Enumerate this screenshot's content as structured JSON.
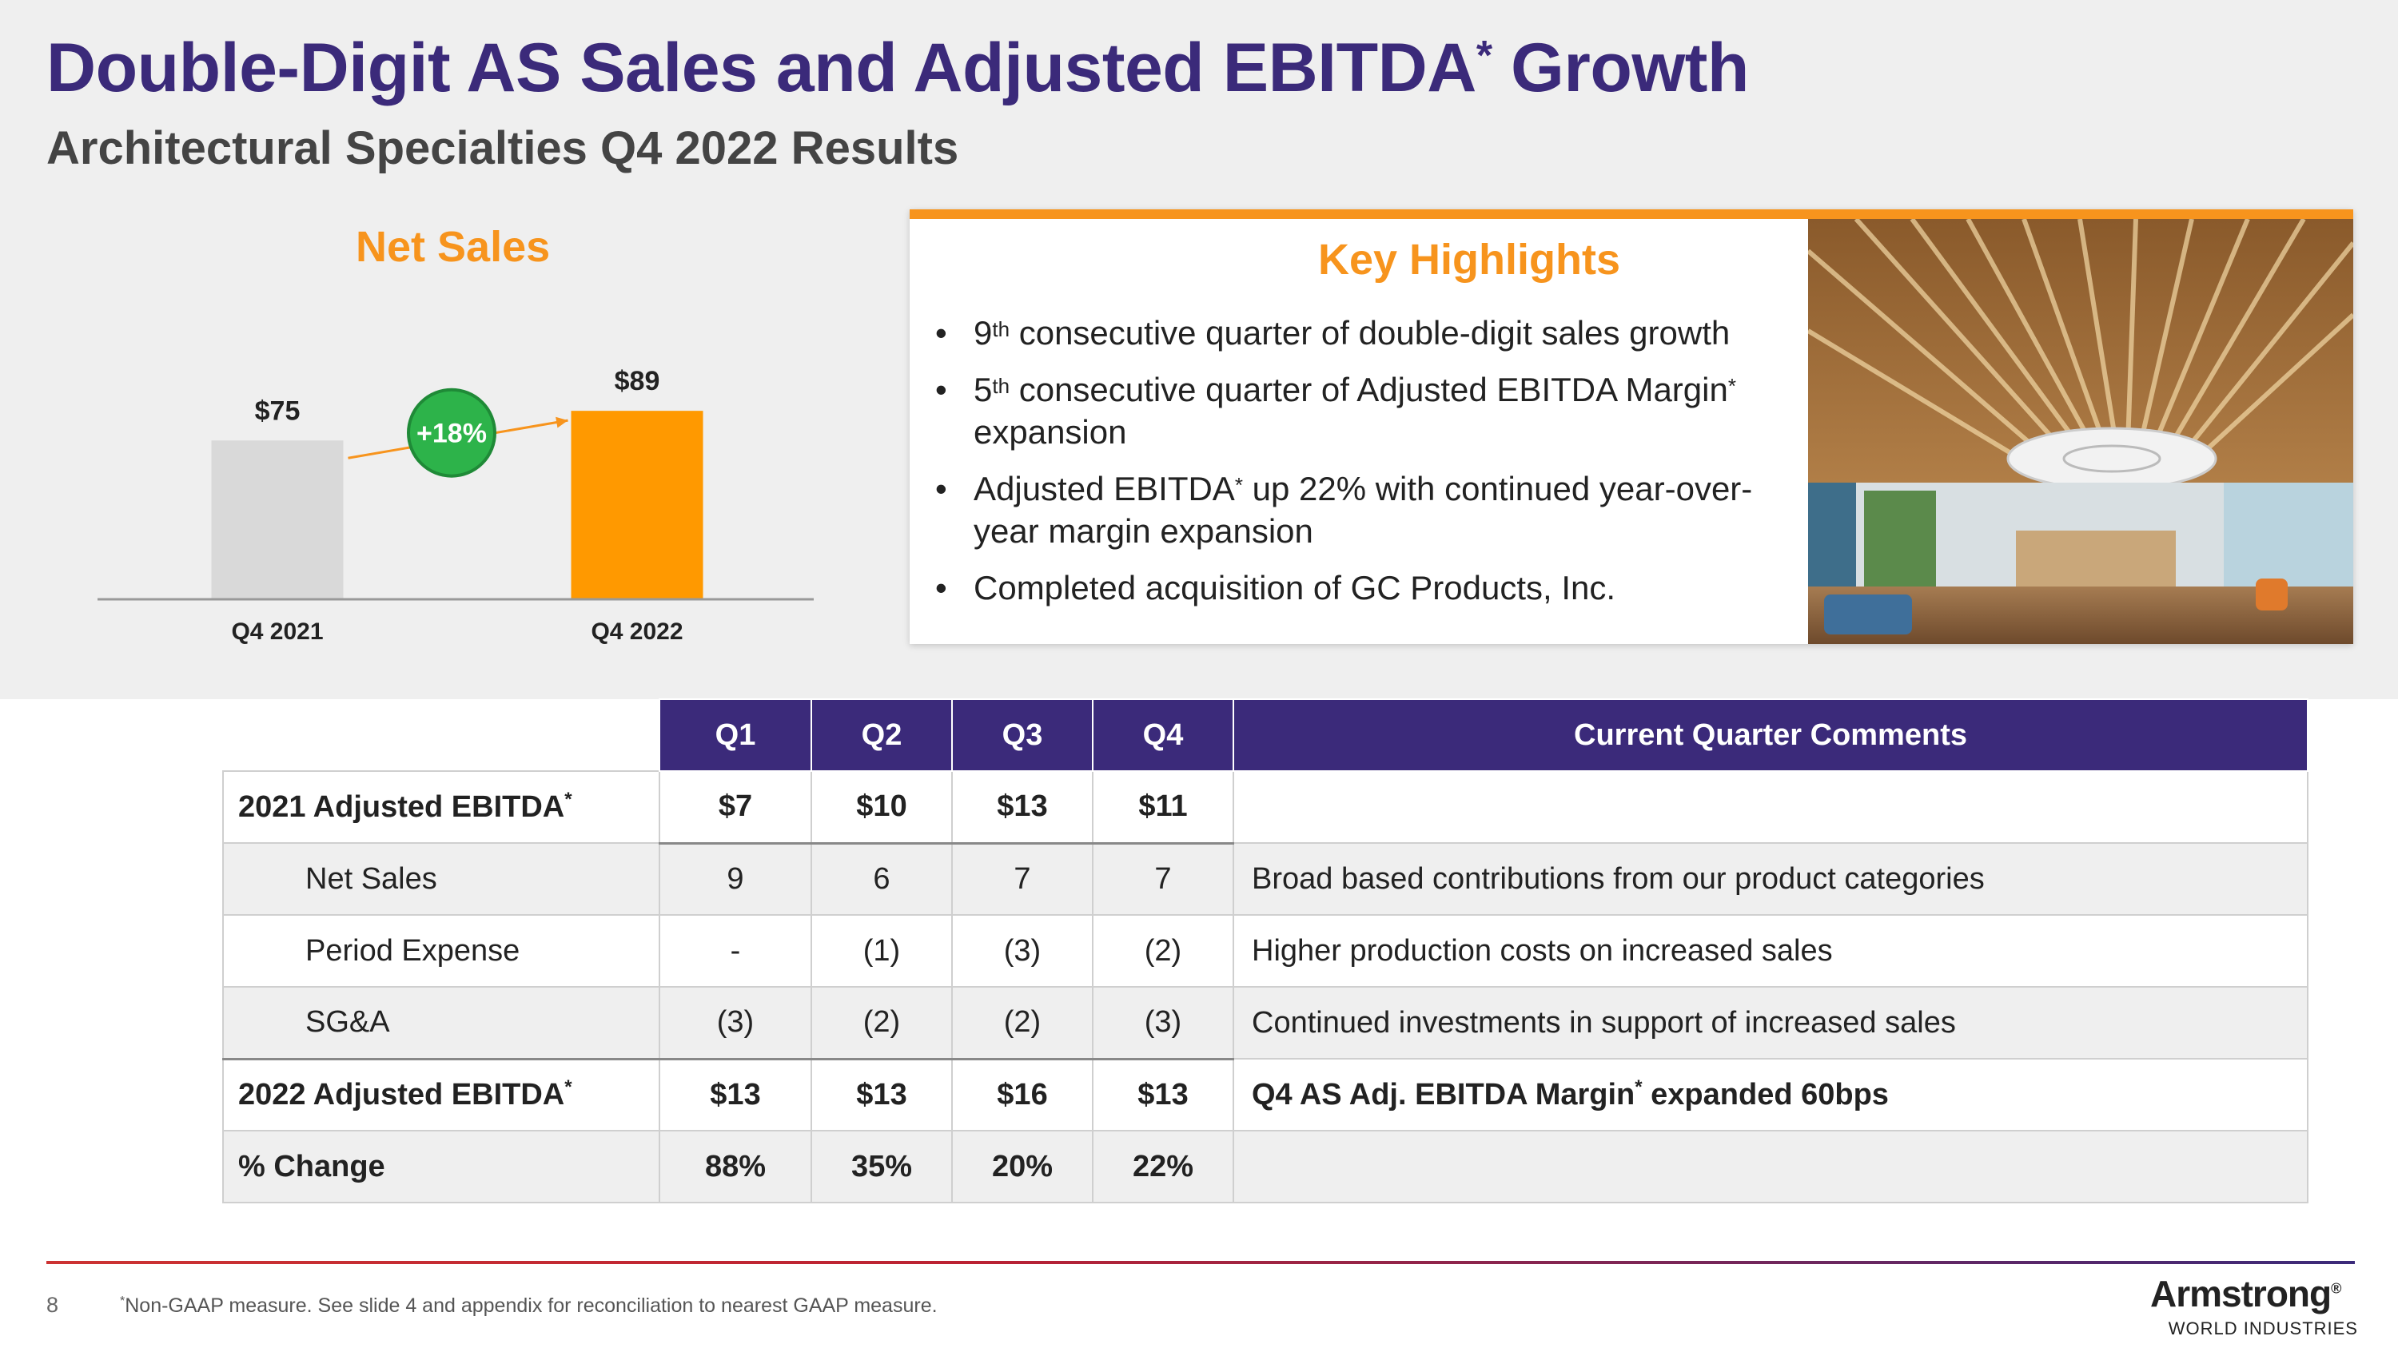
{
  "header": {
    "title": "Double-Digit AS Sales and Adjusted EBITDA",
    "title_mark": "*",
    "title_suffix": " Growth",
    "subtitle": "Architectural Specialties Q4 2022 Results"
  },
  "chart_data": {
    "type": "bar",
    "title": "Net Sales",
    "categories": [
      "Q4 2021",
      "Q4 2022"
    ],
    "values": [
      75,
      89
    ],
    "value_labels": [
      "$75",
      "$89"
    ],
    "colors": [
      "#d9d9d9",
      "#ff9900"
    ],
    "growth_label": "+18%",
    "growth_color": "#2db34a",
    "ylim": [
      0,
      100
    ]
  },
  "highlights": {
    "title": "Key Highlights",
    "items": [
      {
        "pre": "9",
        "sup": "th",
        "post": " consecutive quarter of double-digit sales growth"
      },
      {
        "pre": "5",
        "sup": "th",
        "post": " consecutive quarter of Adjusted EBITDA Margin",
        "sup2": "*",
        "post2": " expansion"
      },
      {
        "pre": "Adjusted EBITDA",
        "sup": "*",
        "post": " up 22% with continued year-over-year margin expansion"
      },
      {
        "pre": "Completed acquisition of GC Products, Inc."
      }
    ]
  },
  "table": {
    "headers": [
      "Q1",
      "Q2",
      "Q3",
      "Q4",
      "Current Quarter Comments"
    ],
    "rows": [
      {
        "label": "2021 Adjusted EBITDA",
        "mark": "*",
        "values": [
          "$7",
          "$10",
          "$13",
          "$11"
        ],
        "comment": ""
      },
      {
        "label": "Net Sales",
        "values": [
          "9",
          "6",
          "7",
          "7"
        ],
        "comment": "Broad based contributions from our product categories"
      },
      {
        "label": "Period Expense",
        "values": [
          "-",
          "(1)",
          "(3)",
          "(2)"
        ],
        "comment": "Higher production costs on increased sales"
      },
      {
        "label": "SG&A",
        "values": [
          "(3)",
          "(2)",
          "(2)",
          "(3)"
        ],
        "comment": "Continued investments in support of increased sales"
      },
      {
        "label": "2022 Adjusted EBITDA",
        "mark": "*",
        "values": [
          "$13",
          "$13",
          "$16",
          "$13"
        ],
        "comment": "Q4 AS Adj. EBITDA Margin",
        "comment_mark": "*",
        "comment_suffix": " expanded 60bps"
      },
      {
        "label": "% Change",
        "values": [
          "88%",
          "35%",
          "20%",
          "22%"
        ],
        "comment": ""
      }
    ]
  },
  "footer": {
    "page_number": "8",
    "footnote_mark": "*",
    "footnote": "Non-GAAP measure. See slide 4 and appendix for reconciliation to nearest GAAP measure.",
    "logo_name": "Armstrong",
    "logo_mark": "®",
    "logo_sub": "WORLD INDUSTRIES"
  },
  "colors": {
    "brand_purple": "#3b2a7a",
    "accent_orange": "#f7941d",
    "growth_green": "#2db34a"
  }
}
